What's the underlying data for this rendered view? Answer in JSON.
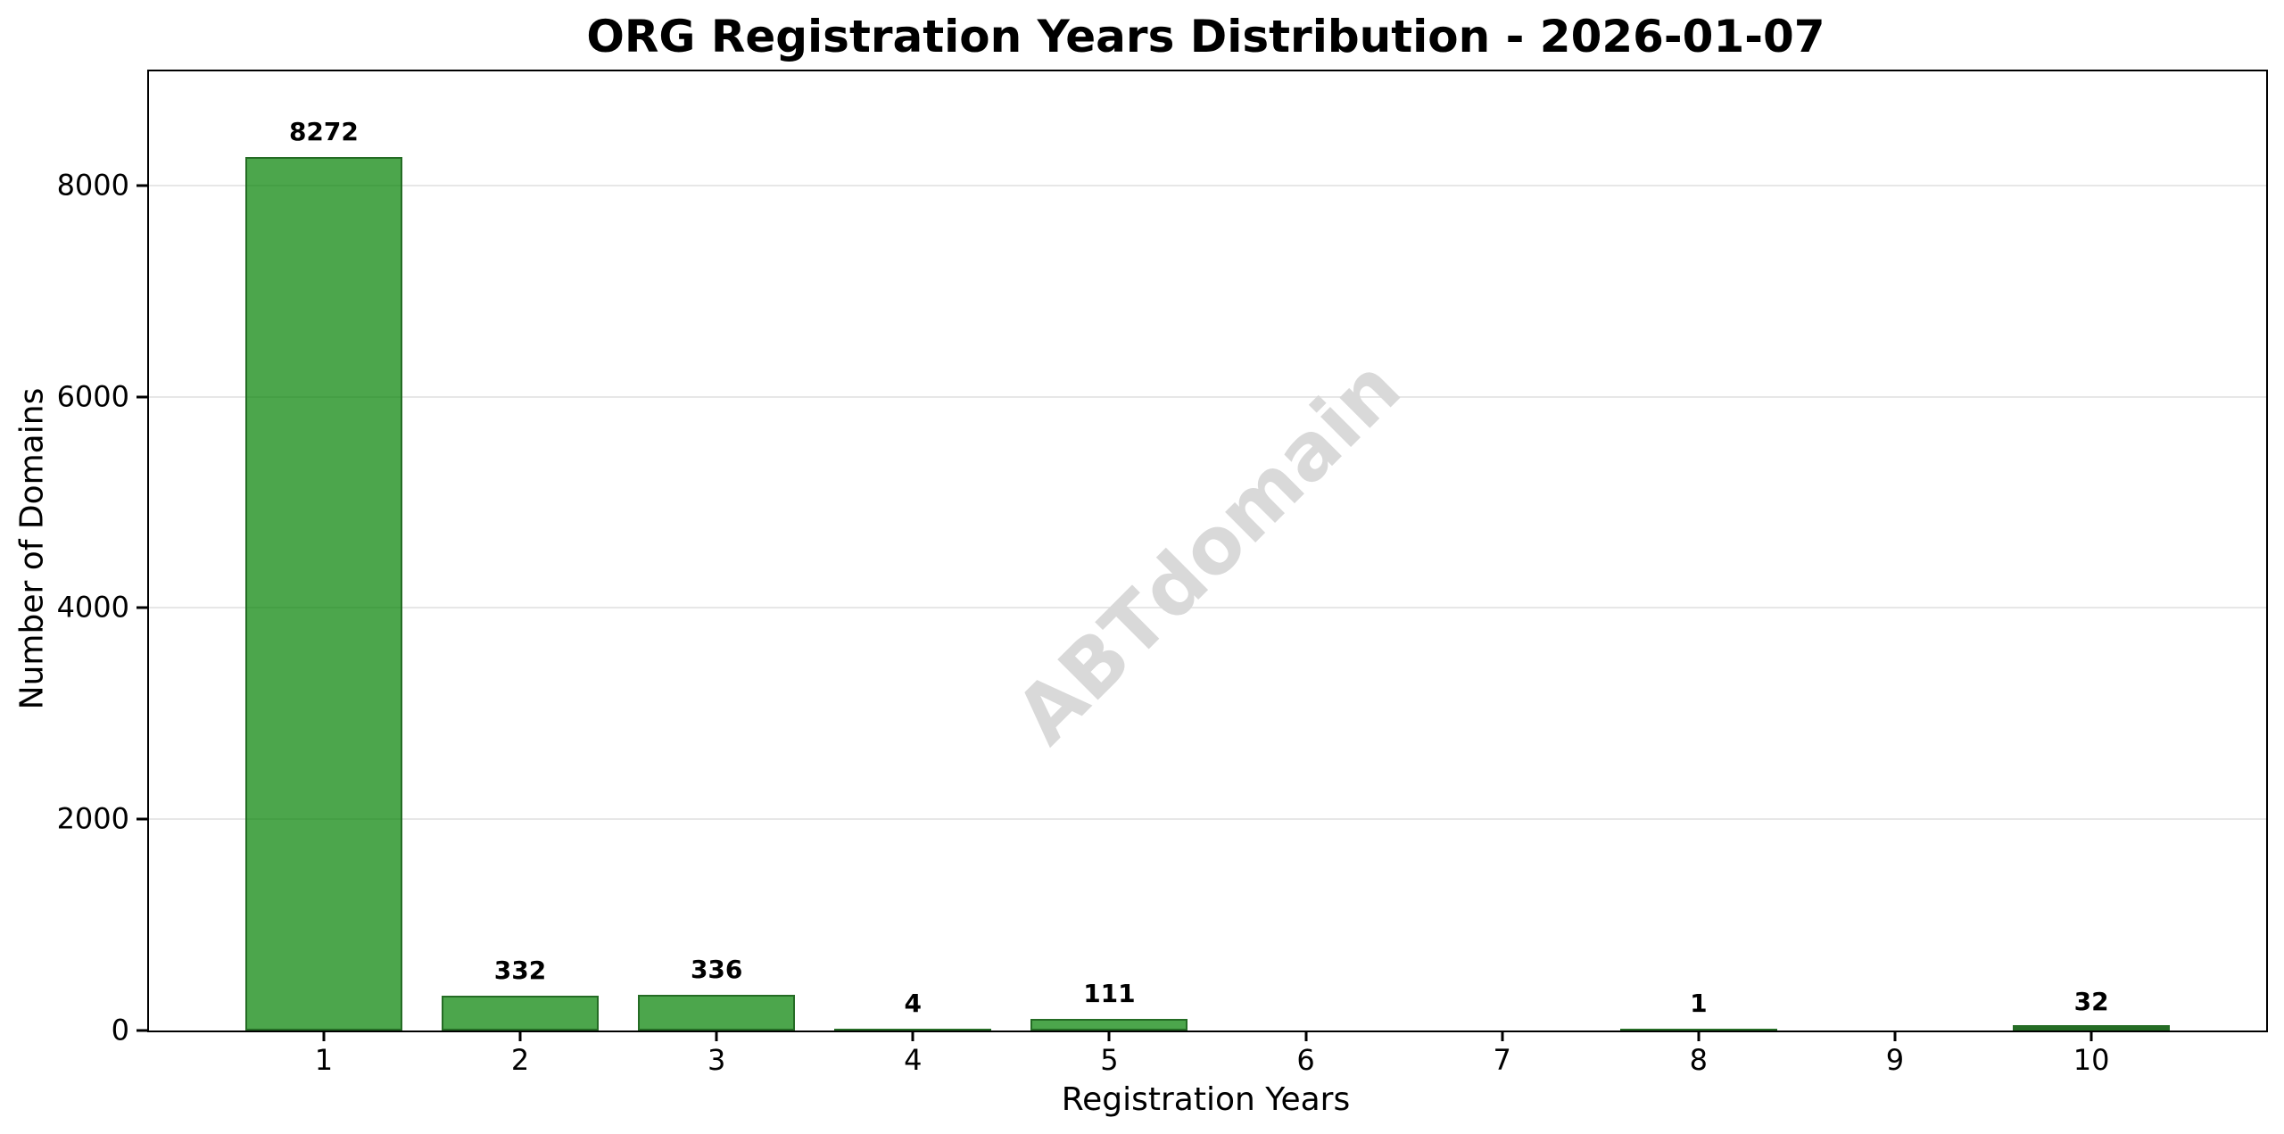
{
  "chart_data": {
    "type": "bar",
    "title": "ORG Registration Years Distribution - 2026-01-07",
    "xlabel": "Registration Years",
    "ylabel": "Number of Domains",
    "categories": [
      1,
      2,
      3,
      4,
      5,
      6,
      7,
      8,
      9,
      10
    ],
    "xtick_labels": [
      "1",
      "2",
      "3",
      "4",
      "5",
      "6",
      "7",
      "8",
      "9",
      "10"
    ],
    "values": [
      8272,
      332,
      336,
      4,
      111,
      null,
      null,
      1,
      null,
      32
    ],
    "bar_labels": [
      "8272",
      "332",
      "336",
      "4",
      "111",
      null,
      null,
      "1",
      null,
      "32"
    ],
    "yticks": [
      0,
      2000,
      4000,
      6000,
      8000
    ],
    "ytick_labels": [
      "0",
      "2000",
      "4000",
      "6000",
      "8000"
    ],
    "ylim": [
      0,
      9080
    ],
    "xlim": [
      0.11,
      10.89
    ],
    "bar_width": 0.8,
    "grid": "horizontal-only",
    "legend": "none",
    "watermark": "ABTdomain",
    "colors": {
      "bar_fill": "rgba(0,128,0,0.7)",
      "bar_edge": "#256c25",
      "gridline": "#e7e7e7",
      "watermark": "#d9d9d9",
      "text": "#000000",
      "background": "#ffffff"
    }
  }
}
